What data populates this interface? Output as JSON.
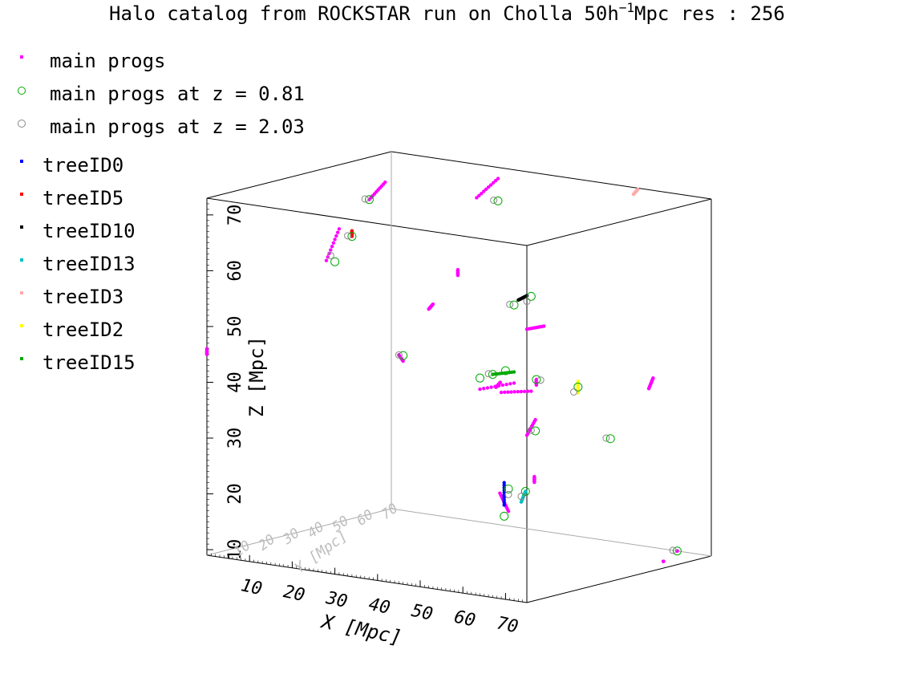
{
  "chart_data": {
    "type": "scatter",
    "title": "Halo catalog from ROCKSTAR run on Cholla 50h",
    "title_superscript": "−1",
    "title_suffix": "Mpc res :  256",
    "xlabel": "X [Mpc]",
    "ylabel": "Y [Mpc]",
    "zlabel": "Z [Mpc]",
    "xticks": [
      "10",
      "20",
      "30",
      "40",
      "50",
      "60",
      "70"
    ],
    "yticks": [
      "10",
      "20",
      "30",
      "40",
      "50",
      "60",
      "70"
    ],
    "zticks": [
      "10",
      "20",
      "30",
      "40",
      "50",
      "60",
      "70"
    ],
    "xlim": [
      0,
      75
    ],
    "ylim": [
      0,
      75
    ],
    "zlim": [
      9,
      73
    ],
    "legend": [
      {
        "label": "main progs",
        "marker": "dot",
        "color": "#ff00ff"
      },
      {
        "label": "main progs at z = 0.81",
        "marker": "circle",
        "color": "#00aa00"
      },
      {
        "label": "main progs at z = 2.03",
        "marker": "circle",
        "color": "#888888"
      },
      {
        "label": "treeID0",
        "marker": "dot",
        "color": "#0000ff"
      },
      {
        "label": "treeID5",
        "marker": "dot",
        "color": "#ff0000"
      },
      {
        "label": "treeID10",
        "marker": "dot",
        "color": "#000000"
      },
      {
        "label": "treeID13",
        "marker": "dot",
        "color": "#00c0c0"
      },
      {
        "label": "treeID3",
        "marker": "dot",
        "color": "#ffaaaa"
      },
      {
        "label": "treeID2",
        "marker": "dot",
        "color": "#ffff00"
      },
      {
        "label": "treeID15",
        "marker": "dot",
        "color": "#00aa00"
      }
    ],
    "grid": false,
    "legend_position": "top-left",
    "series": [
      {
        "name": "main progs",
        "color": "#ff00ff",
        "tracks": [
          {
            "x": [
              20,
              25
            ],
            "y": [
              75,
              75
            ],
            "z": [
              67,
              71
            ]
          },
          {
            "x": [
              28,
              31
            ],
            "y": [
              0,
              0
            ],
            "z": [
              65,
              71
            ]
          },
          {
            "x": [
              15,
              17
            ],
            "y": [
              40,
              43
            ],
            "z": [
              70,
              73
            ]
          },
          {
            "x": [
              34,
              34
            ],
            "y": [
              75,
              75
            ],
            "z": [
              36,
              35
            ]
          },
          {
            "x": [
              64,
              72
            ],
            "y": [
              0,
              0
            ],
            "z": [
              46,
              48
            ]
          },
          {
            "x": [
              69,
              76
            ],
            "y": [
              0,
              0
            ],
            "z": [
              46,
              47
            ]
          },
          {
            "x": [
              75,
              77
            ],
            "y": [
              0,
              0
            ],
            "z": [
              39,
              42
            ]
          },
          {
            "x": [
              58,
              56
            ],
            "y": [
              22,
              22
            ],
            "z": [
              21,
              24
            ]
          },
          {
            "x": [
              52,
              53
            ],
            "y": [
              0,
              0
            ],
            "z": [
              59,
              60
            ]
          },
          {
            "x": [
              69,
              70
            ],
            "y": [
              60,
              60
            ],
            "z": [
              40,
              42
            ]
          },
          {
            "x": [
              75,
              79
            ],
            "y": [
              0,
              0
            ],
            "z": [
              58,
              59
            ]
          },
          {
            "x": [
              0,
              0
            ],
            "y": [
              0,
              0
            ],
            "z": [
              45,
              46
            ]
          },
          {
            "x": [
              30,
              30
            ],
            "y": [
              50,
              50
            ],
            "z": [
              57,
              58
            ]
          },
          {
            "x": [
              71,
              71
            ],
            "y": [
              10,
              10
            ],
            "z": [
              29,
              30
            ]
          },
          {
            "x": [
              67,
              67
            ],
            "y": [
              75,
              75
            ],
            "z": [
              9,
              9
            ]
          },
          {
            "x": [
              46,
              45
            ],
            "y": [
              0,
              0
            ],
            "z": [
              49,
              50
            ]
          },
          {
            "x": [
              62,
              63
            ],
            "y": [
              10,
              10
            ],
            "z": [
              45,
              46
            ]
          },
          {
            "x": [
              107,
              107
            ],
            "y": [
              0,
              0
            ],
            "z": [
              20,
              20
            ]
          }
        ]
      },
      {
        "name": "treeID0",
        "color": "#0000ff",
        "tracks": [
          {
            "x": [
              57,
              57
            ],
            "y": [
              22,
              22
            ],
            "z": [
              22,
              26
            ]
          }
        ]
      },
      {
        "name": "treeID5",
        "color": "#ff0000",
        "tracks": [
          {
            "x": [
              34,
              34
            ],
            "y": [
              0,
              0
            ],
            "z": [
              70,
              71
            ]
          }
        ]
      },
      {
        "name": "treeID10",
        "color": "#000000",
        "tracks": [
          {
            "x": [
              73,
              75
            ],
            "y": [
              0,
              0
            ],
            "z": [
              63,
              64
            ]
          }
        ]
      },
      {
        "name": "treeID13",
        "color": "#00c0c0",
        "tracks": [
          {
            "x": [
              61,
              62
            ],
            "y": [
              22,
              22
            ],
            "z": [
              23,
              25
            ]
          }
        ]
      },
      {
        "name": "treeID3",
        "color": "#ffaaaa",
        "tracks": [
          {
            "x": [
              100,
              101
            ],
            "y": [
              0,
              0
            ],
            "z": [
              85,
              86
            ]
          }
        ]
      },
      {
        "name": "treeID2",
        "color": "#ffff00",
        "tracks": [
          {
            "x": [
              87,
              87
            ],
            "y": [
              0,
              0
            ],
            "z": [
              48,
              50
            ]
          }
        ]
      },
      {
        "name": "treeID15",
        "color": "#00aa00",
        "tracks": [
          {
            "x": [
              67,
              72
            ],
            "y": [
              0,
              0
            ],
            "z": [
              49,
              50
            ]
          }
        ]
      }
    ],
    "circles_z081": [
      [
        15,
        40,
        70
      ],
      [
        25,
        75,
        67
      ],
      [
        30,
        0,
        65
      ],
      [
        34,
        0,
        70
      ],
      [
        34,
        75,
        36
      ],
      [
        46,
        0,
        50
      ],
      [
        67,
        0,
        49
      ],
      [
        70,
        0,
        50
      ],
      [
        72,
        0,
        62
      ],
      [
        76,
        0,
        64
      ],
      [
        77,
        0,
        40
      ],
      [
        87,
        0,
        49
      ],
      [
        57,
        22,
        20
      ],
      [
        58,
        22,
        25
      ],
      [
        62,
        22,
        25
      ],
      [
        67,
        75,
        9
      ],
      [
        60,
        60,
        30
      ],
      [
        64,
        0,
        48
      ]
    ],
    "circles_z203": [
      [
        14,
        40,
        70
      ],
      [
        24,
        75,
        67
      ],
      [
        29,
        0,
        66
      ],
      [
        33,
        0,
        70
      ],
      [
        35,
        75,
        36
      ],
      [
        45,
        0,
        50
      ],
      [
        66,
        0,
        49
      ],
      [
        71,
        0,
        62
      ],
      [
        75,
        0,
        63
      ],
      [
        76,
        0,
        40
      ],
      [
        86,
        0,
        48
      ],
      [
        58,
        22,
        24
      ],
      [
        61,
        22,
        24
      ],
      [
        66,
        75,
        9
      ],
      [
        59,
        60,
        30
      ]
    ]
  }
}
